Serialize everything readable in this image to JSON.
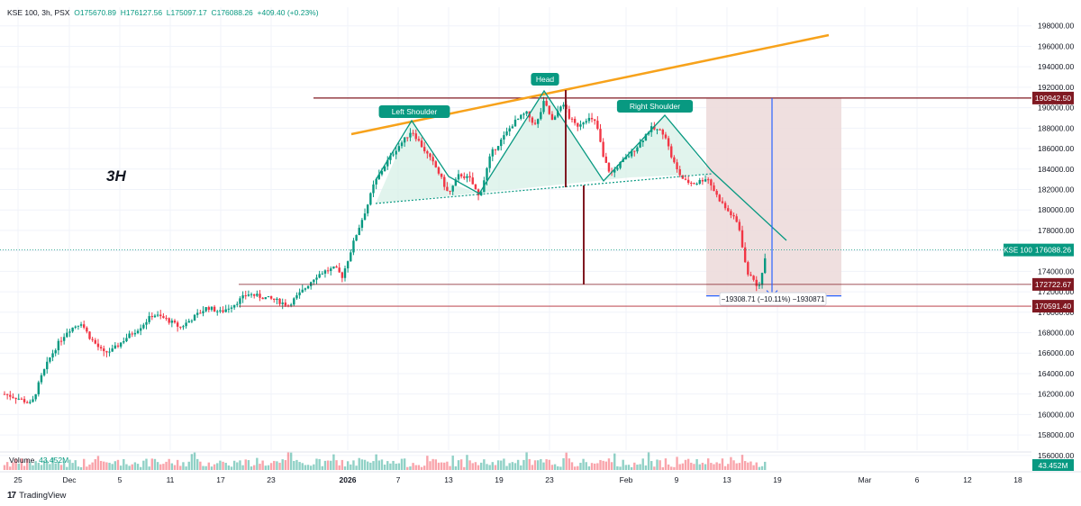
{
  "header": {
    "symbol": "KSE 100, 3h, PSX",
    "open": "O175670.89",
    "high": "H176127.56",
    "low": "L175097.17",
    "close": "C176088.26",
    "change": "+409.40 (+0.23%)"
  },
  "timeframe_label": "3H",
  "volume": {
    "label": "Volume",
    "value": "43.452M",
    "badge": "43.452M"
  },
  "brand": {
    "logo": "17",
    "name": "TradingView"
  },
  "colors": {
    "up": "#089981",
    "down": "#f23645",
    "trendline": "#f7a21b",
    "neckline_fill": "#d4efe6",
    "dark_red": "#801922",
    "blue": "#2962ff"
  },
  "chart_data": {
    "type": "candlestick",
    "ylim": [
      155000,
      199000
    ],
    "y_ticks": [
      "156000.00",
      "158000.00",
      "160000.00",
      "162000.00",
      "164000.00",
      "166000.00",
      "168000.00",
      "170000.00",
      "172000.00",
      "174000.00",
      "176000.00",
      "178000.00",
      "180000.00",
      "182000.00",
      "184000.00",
      "186000.00",
      "188000.00",
      "190000.00",
      "192000.00",
      "194000.00",
      "196000.00",
      "198000.00"
    ],
    "x_ticks": [
      {
        "label": "25",
        "bold": false
      },
      {
        "label": "Dec",
        "bold": false
      },
      {
        "label": "5",
        "bold": false
      },
      {
        "label": "11",
        "bold": false
      },
      {
        "label": "17",
        "bold": false
      },
      {
        "label": "23",
        "bold": false
      },
      {
        "label": "2026",
        "bold": true
      },
      {
        "label": "7",
        "bold": false
      },
      {
        "label": "13",
        "bold": false
      },
      {
        "label": "19",
        "bold": false
      },
      {
        "label": "23",
        "bold": false
      },
      {
        "label": "Feb",
        "bold": false
      },
      {
        "label": "9",
        "bold": false
      },
      {
        "label": "13",
        "bold": false
      },
      {
        "label": "19",
        "bold": false
      },
      {
        "label": "Mar",
        "bold": false
      },
      {
        "label": "6",
        "bold": false
      },
      {
        "label": "12",
        "bold": false
      },
      {
        "label": "18",
        "bold": false
      }
    ],
    "price_labels": [
      {
        "text": "190942.50",
        "value": 190942.5,
        "color": "#801922"
      },
      {
        "text": "176088.26",
        "value": 176088.26,
        "color": "#089981",
        "name": "KSE 100"
      },
      {
        "text": "172722.67",
        "value": 172722.67,
        "color": "#801922"
      },
      {
        "text": "170591.40",
        "value": 170591.4,
        "color": "#801922"
      }
    ],
    "annotations": [
      {
        "text": "Left Shoulder"
      },
      {
        "text": "Head"
      },
      {
        "text": "Right Shoulder"
      },
      {
        "text": "−19308.71 (−10.11%) −1930871"
      }
    ],
    "key_points": [
      {
        "name": "left_shoulder",
        "value": 187800
      },
      {
        "name": "head",
        "value": 190900
      },
      {
        "name": "right_shoulder",
        "value": 188500
      },
      {
        "name": "measured_low",
        "value": 171600
      }
    ],
    "levels": [
      190942.5,
      172722.67,
      170591.4
    ],
    "last_price": 176088.26
  }
}
